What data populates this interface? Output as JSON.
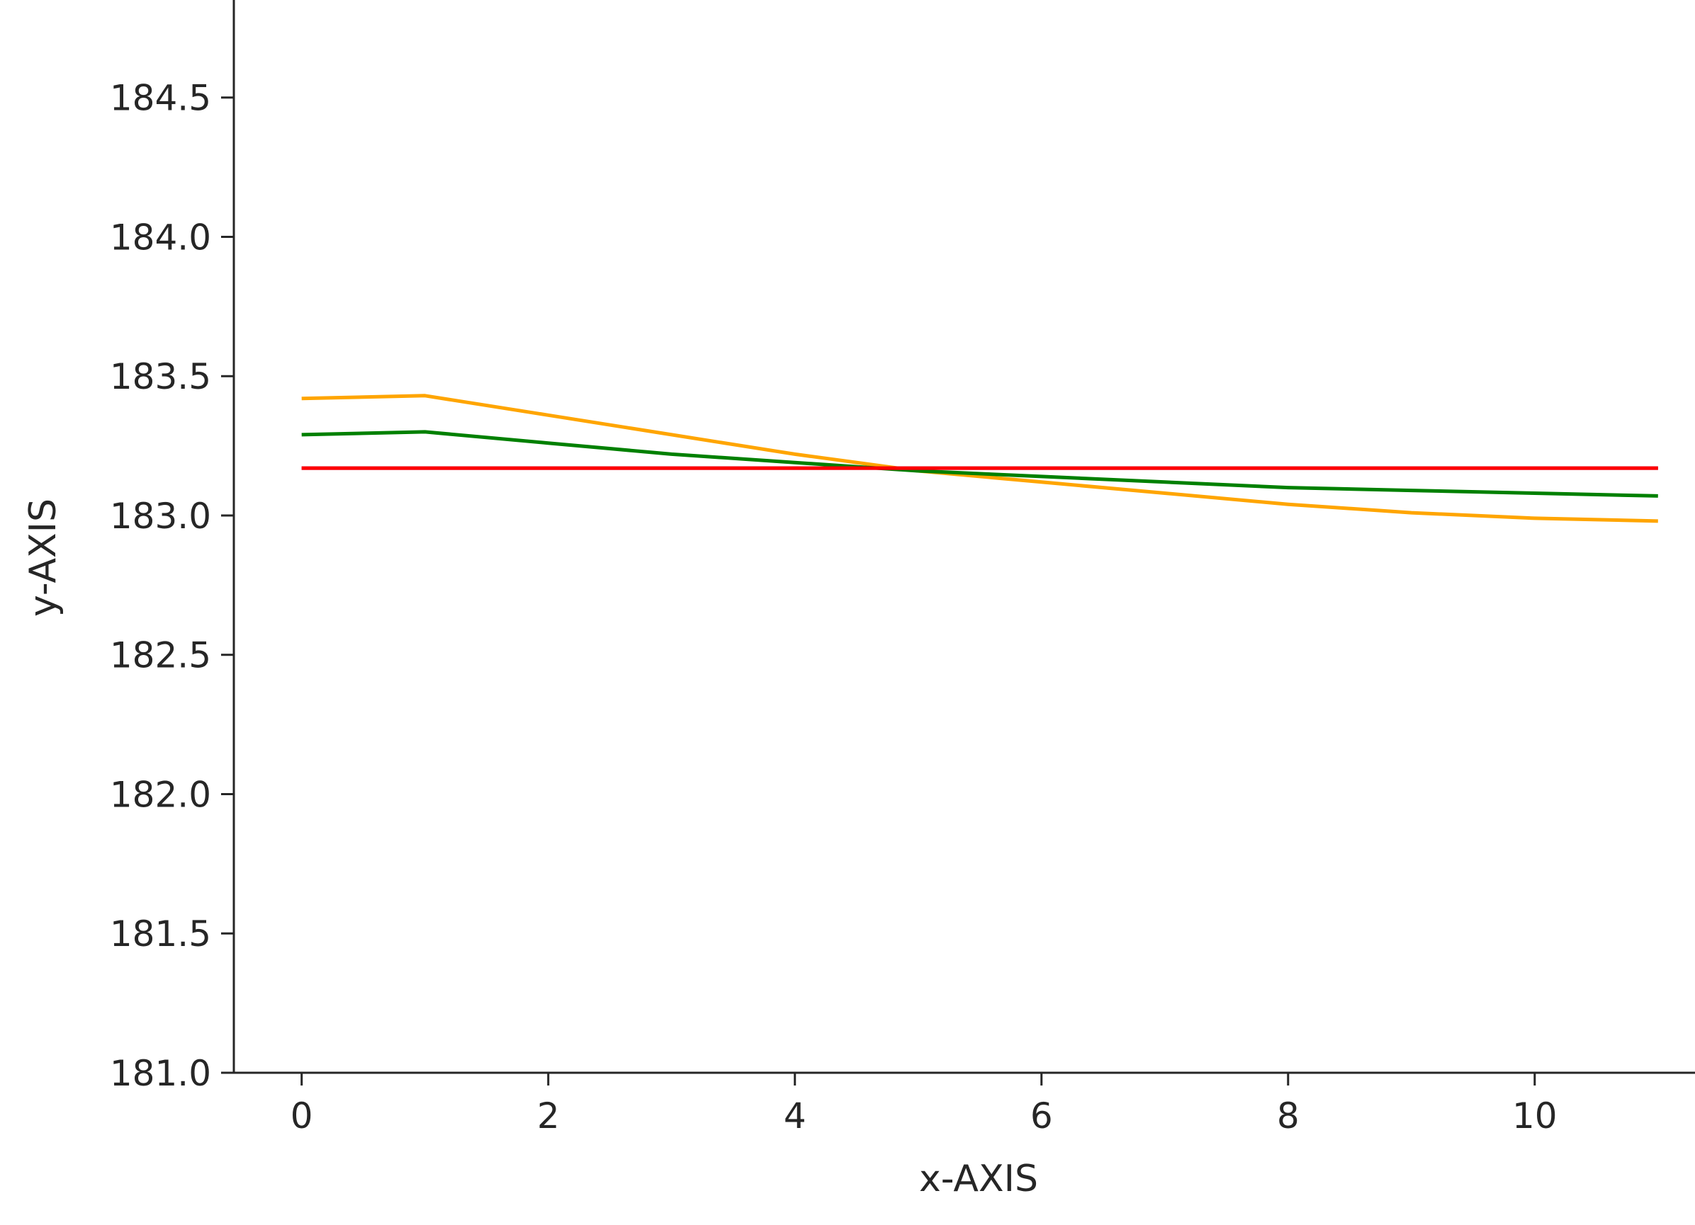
{
  "chart_data": {
    "type": "line",
    "title": "",
    "xlabel": "x-AXIS",
    "ylabel": "y-AXIS",
    "xlim": [
      -0.55,
      11.3
    ],
    "ylim": [
      181.0,
      184.85
    ],
    "xticks": [
      0,
      2,
      4,
      6,
      8,
      10
    ],
    "xtick_labels": [
      "0",
      "2",
      "4",
      "6",
      "8",
      "10"
    ],
    "yticks": [
      181.0,
      181.5,
      182.0,
      182.5,
      183.0,
      183.5,
      184.0,
      184.5
    ],
    "ytick_labels": [
      "181.0",
      "181.5",
      "182.0",
      "182.5",
      "183.0",
      "183.5",
      "184.0",
      "184.5"
    ],
    "grid": false,
    "legend": false,
    "x": [
      0,
      1,
      2,
      3,
      4,
      5,
      6,
      7,
      8,
      9,
      10,
      11
    ],
    "series": [
      {
        "color": "#FFA500",
        "values": [
          183.42,
          183.43,
          183.36,
          183.29,
          183.22,
          183.16,
          183.12,
          183.08,
          183.04,
          183.01,
          182.99,
          182.98
        ]
      },
      {
        "color": "#008000",
        "values": [
          183.29,
          183.3,
          183.26,
          183.22,
          183.19,
          183.16,
          183.14,
          183.12,
          183.1,
          183.09,
          183.08,
          183.07
        ]
      },
      {
        "color": "#800080",
        "values": [
          183.17,
          183.17,
          183.17,
          183.17,
          183.17,
          183.17,
          183.17,
          183.17,
          183.17,
          183.17,
          183.17,
          183.17
        ]
      },
      {
        "color": "#FF0000",
        "values": [
          183.17,
          183.17,
          183.17,
          183.17,
          183.17,
          183.17,
          183.17,
          183.17,
          183.17,
          183.17,
          183.17,
          183.17
        ]
      }
    ]
  }
}
